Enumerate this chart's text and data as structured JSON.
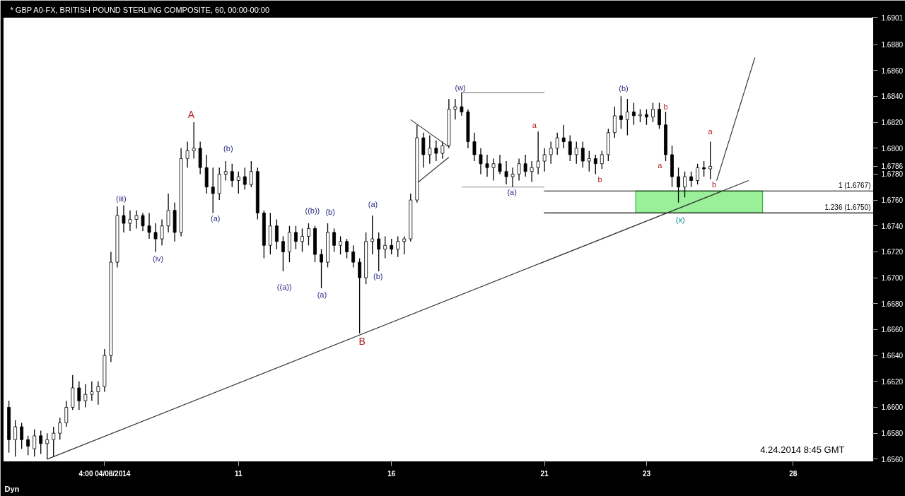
{
  "chart_data": {
    "type": "candlestick",
    "title": "* GBP A0-FX, BRITISH POUND STERLING COMPOSITE, 60, 00:00-00:00",
    "categories": [
      null,
      null,
      null,
      null,
      null,
      null,
      null,
      null,
      null,
      null,
      null,
      null,
      null,
      null,
      null,
      "4:00 04/08/2014",
      null,
      null,
      null,
      null,
      null,
      null,
      null,
      null,
      null,
      null,
      null,
      null,
      null,
      null,
      null,
      null,
      null,
      null,
      null,
      null,
      "11",
      null,
      null,
      null,
      null,
      null,
      null,
      null,
      null,
      null,
      null,
      null,
      null,
      null,
      null,
      null,
      null,
      null,
      null,
      null,
      null,
      null,
      null,
      null,
      "16",
      null,
      null,
      null,
      null,
      null,
      null,
      null,
      null,
      null,
      null,
      null,
      null,
      null,
      null,
      null,
      null,
      null,
      null,
      null,
      null,
      null,
      null,
      null,
      "21",
      null,
      null,
      null,
      null,
      null,
      null,
      null,
      null,
      null,
      null,
      null,
      null,
      null,
      null,
      null,
      "23",
      null,
      null,
      null,
      null,
      null,
      null,
      null,
      null,
      null,
      null,
      null,
      null,
      null,
      null,
      null,
      null,
      null,
      null,
      null,
      null,
      null,
      null,
      "28",
      null,
      null,
      null,
      null,
      null,
      null,
      null,
      null,
      null,
      null,
      null,
      null
    ],
    "ohlc": [
      [
        1.66,
        1.6605,
        1.6565,
        1.6575
      ],
      [
        1.6575,
        1.659,
        1.6562,
        1.6585
      ],
      [
        1.6585,
        1.6588,
        1.6568,
        1.6575
      ],
      [
        1.6575,
        1.6578,
        1.6563,
        1.657
      ],
      [
        1.6568,
        1.6583,
        1.6562,
        1.6578
      ],
      [
        1.6578,
        1.6582,
        1.6564,
        1.6572
      ],
      [
        1.6572,
        1.658,
        1.656,
        1.6575
      ],
      [
        1.6575,
        1.6585,
        1.6562,
        1.658
      ],
      [
        1.658,
        1.6592,
        1.6575,
        1.6588
      ],
      [
        1.6588,
        1.6605,
        1.6585,
        1.66
      ],
      [
        1.66,
        1.6625,
        1.6598,
        1.6615
      ],
      [
        1.6615,
        1.662,
        1.6598,
        1.6605
      ],
      [
        1.6605,
        1.6618,
        1.66,
        1.661
      ],
      [
        1.661,
        1.662,
        1.6605,
        1.6612
      ],
      [
        1.6612,
        1.662,
        1.6602,
        1.6616
      ],
      [
        1.6616,
        1.6645,
        1.6612,
        1.664
      ],
      [
        1.664,
        1.672,
        1.6635,
        1.6712
      ],
      [
        1.6712,
        1.6755,
        1.6708,
        1.6748
      ],
      [
        1.6748,
        1.6756,
        1.6735,
        1.6742
      ],
      [
        1.6742,
        1.6752,
        1.6736,
        1.6745
      ],
      [
        1.6745,
        1.6752,
        1.6738,
        1.6748
      ],
      [
        1.6748,
        1.675,
        1.6736,
        1.674
      ],
      [
        1.674,
        1.675,
        1.673,
        1.6735
      ],
      [
        1.6735,
        1.6742,
        1.672,
        1.673
      ],
      [
        1.673,
        1.6745,
        1.6725,
        1.674
      ],
      [
        1.674,
        1.6765,
        1.6735,
        1.6752
      ],
      [
        1.6752,
        1.6758,
        1.6728,
        1.6735
      ],
      [
        1.6735,
        1.68,
        1.6732,
        1.6792
      ],
      [
        1.6792,
        1.6805,
        1.6785,
        1.6798
      ],
      [
        1.6798,
        1.682,
        1.6792,
        1.68
      ],
      [
        1.68,
        1.6805,
        1.678,
        1.6785
      ],
      [
        1.6785,
        1.6795,
        1.6765,
        1.677
      ],
      [
        1.677,
        1.6785,
        1.675,
        1.6765
      ],
      [
        1.6765,
        1.6785,
        1.676,
        1.678
      ],
      [
        1.678,
        1.679,
        1.6775,
        1.6782
      ],
      [
        1.6782,
        1.6788,
        1.677,
        1.6775
      ],
      [
        1.6775,
        1.6782,
        1.6765,
        1.6778
      ],
      [
        1.6778,
        1.6785,
        1.6768,
        1.6772
      ],
      [
        1.6772,
        1.679,
        1.677,
        1.6782
      ],
      [
        1.6782,
        1.6785,
        1.6745,
        1.675
      ],
      [
        1.675,
        1.6752,
        1.6715,
        1.6725
      ],
      [
        1.6725,
        1.675,
        1.6718,
        1.674
      ],
      [
        1.674,
        1.6745,
        1.6722,
        1.6728
      ],
      [
        1.6728,
        1.6732,
        1.6705,
        1.672
      ],
      [
        1.672,
        1.674,
        1.6712,
        1.6735
      ],
      [
        1.6735,
        1.674,
        1.6722,
        1.6728
      ],
      [
        1.6728,
        1.6738,
        1.672,
        1.6732
      ],
      [
        1.6732,
        1.6742,
        1.6725,
        1.6738
      ],
      [
        1.6738,
        1.674,
        1.6712,
        1.6718
      ],
      [
        1.6718,
        1.6722,
        1.6692,
        1.6712
      ],
      [
        1.6712,
        1.6742,
        1.6708,
        1.6735
      ],
      [
        1.6735,
        1.6738,
        1.672,
        1.6725
      ],
      [
        1.6725,
        1.6732,
        1.6718,
        1.6728
      ],
      [
        1.6728,
        1.673,
        1.6715,
        1.672
      ],
      [
        1.672,
        1.6725,
        1.6708,
        1.6712
      ],
      [
        1.6712,
        1.6715,
        1.6657,
        1.67
      ],
      [
        1.67,
        1.6735,
        1.6695,
        1.6728
      ],
      [
        1.6728,
        1.6748,
        1.6718,
        1.673
      ],
      [
        1.673,
        1.6735,
        1.6705,
        1.6722
      ],
      [
        1.6722,
        1.6732,
        1.6715,
        1.6725
      ],
      [
        1.6725,
        1.673,
        1.6718,
        1.6722
      ],
      [
        1.6722,
        1.6732,
        1.6716,
        1.6728
      ],
      [
        1.6728,
        1.6732,
        1.6718,
        1.673
      ],
      [
        1.673,
        1.6765,
        1.6728,
        1.676
      ],
      [
        1.676,
        1.6818,
        1.6758,
        1.6808
      ],
      [
        1.6808,
        1.6812,
        1.6785,
        1.6795
      ],
      [
        1.6795,
        1.681,
        1.6788,
        1.68
      ],
      [
        1.68,
        1.6806,
        1.679,
        1.6796
      ],
      [
        1.6796,
        1.6805,
        1.6792,
        1.6802
      ],
      [
        1.6802,
        1.6838,
        1.68,
        1.683
      ],
      [
        1.683,
        1.6838,
        1.6822,
        1.6832
      ],
      [
        1.6832,
        1.6843,
        1.6825,
        1.6828
      ],
      [
        1.6828,
        1.683,
        1.68,
        1.6805
      ],
      [
        1.6805,
        1.6812,
        1.679,
        1.6795
      ],
      [
        1.6795,
        1.68,
        1.678,
        1.6788
      ],
      [
        1.6788,
        1.6795,
        1.6778,
        1.6785
      ],
      [
        1.6785,
        1.6792,
        1.6775,
        1.6788
      ],
      [
        1.6788,
        1.6795,
        1.678,
        1.6782
      ],
      [
        1.6782,
        1.679,
        1.6772,
        1.6778
      ],
      [
        1.6778,
        1.6785,
        1.677,
        1.678
      ],
      [
        1.678,
        1.6792,
        1.6775,
        1.6788
      ],
      [
        1.6788,
        1.6795,
        1.6778,
        1.6782
      ],
      [
        1.6782,
        1.679,
        1.6774,
        1.6785
      ],
      [
        1.6785,
        1.6813,
        1.678,
        1.679
      ],
      [
        1.679,
        1.68,
        1.6782,
        1.6795
      ],
      [
        1.6795,
        1.6805,
        1.6788,
        1.68
      ],
      [
        1.68,
        1.6812,
        1.6795,
        1.6808
      ],
      [
        1.6808,
        1.6818,
        1.68,
        1.6805
      ],
      [
        1.6805,
        1.681,
        1.679,
        1.6795
      ],
      [
        1.6795,
        1.6805,
        1.6788,
        1.68
      ],
      [
        1.68,
        1.6805,
        1.6785,
        1.679
      ],
      [
        1.679,
        1.6798,
        1.6782,
        1.6792
      ],
      [
        1.6792,
        1.6795,
        1.678,
        1.6788
      ],
      [
        1.6788,
        1.6798,
        1.6784,
        1.6795
      ],
      [
        1.6795,
        1.6815,
        1.679,
        1.6812
      ],
      [
        1.6812,
        1.6832,
        1.6808,
        1.6825
      ],
      [
        1.6825,
        1.684,
        1.6815,
        1.6822
      ],
      [
        1.6822,
        1.6838,
        1.681,
        1.6828
      ],
      [
        1.6828,
        1.6835,
        1.6818,
        1.6825
      ],
      [
        1.6825,
        1.683,
        1.682,
        1.6826
      ],
      [
        1.6826,
        1.683,
        1.6818,
        1.6824
      ],
      [
        1.6824,
        1.6835,
        1.682,
        1.683
      ],
      [
        1.683,
        1.6835,
        1.6815,
        1.6818
      ],
      [
        1.6818,
        1.6828,
        1.679,
        1.6795
      ],
      [
        1.6795,
        1.6802,
        1.677,
        1.6778
      ],
      [
        1.6778,
        1.6785,
        1.6758,
        1.677
      ],
      [
        1.677,
        1.6782,
        1.6762,
        1.6778
      ],
      [
        1.6778,
        1.6782,
        1.677,
        1.6775
      ],
      [
        1.6775,
        1.6788,
        1.6772,
        1.6785
      ],
      [
        1.6785,
        1.679,
        1.6778,
        1.6784
      ],
      [
        1.6784,
        1.6805,
        1.6776,
        1.6786
      ],
      null,
      null,
      null,
      null,
      null,
      null,
      null,
      null,
      null,
      null,
      null,
      null,
      null,
      null,
      null,
      null,
      null,
      null,
      null,
      null,
      null,
      null,
      null,
      null,
      null
    ],
    "color": "#000000",
    "series": [
      {
        "type": "line",
        "color": "#333333",
        "values": [
          null,
          null,
          null,
          null,
          null,
          null,
          1.656,
          null,
          null,
          null,
          null,
          null,
          null,
          null,
          null,
          null,
          null,
          null,
          null,
          null,
          null,
          null,
          null,
          null,
          null,
          null,
          null,
          null,
          null,
          null,
          null,
          null,
          null,
          null,
          null,
          null,
          null,
          null,
          null,
          null,
          null,
          null,
          null,
          null,
          null,
          null,
          null,
          null,
          null,
          null,
          null,
          null,
          null,
          null,
          null,
          null,
          null,
          null,
          null,
          null,
          null,
          null,
          null,
          null,
          null,
          null,
          null,
          null,
          null,
          null,
          null,
          null,
          null,
          null,
          null,
          null,
          null,
          null,
          null,
          null,
          null,
          null,
          null,
          null,
          null,
          null,
          null,
          null,
          null,
          null,
          null,
          null,
          null,
          null,
          null,
          null,
          null,
          null,
          null,
          null,
          null,
          null,
          null,
          null,
          null,
          null,
          null,
          null,
          null,
          null,
          null,
          null,
          null,
          null,
          null,
          null,
          1.6775,
          null,
          null,
          null,
          null,
          null,
          null,
          null,
          null,
          null,
          null,
          null,
          null,
          null,
          null,
          null,
          null,
          null,
          null,
          null
        ]
      },
      {
        "type": "line",
        "color": "#333333",
        "values": [
          null,
          null,
          null,
          null,
          null,
          null,
          null,
          null,
          null,
          null,
          null,
          null,
          null,
          null,
          null,
          null,
          null,
          null,
          null,
          null,
          null,
          null,
          null,
          null,
          null,
          null,
          null,
          null,
          null,
          null,
          null,
          null,
          null,
          null,
          null,
          null,
          null,
          null,
          null,
          null,
          null,
          null,
          null,
          null,
          null,
          null,
          null,
          null,
          null,
          null,
          null,
          null,
          null,
          null,
          null,
          null,
          null,
          null,
          null,
          null,
          null,
          null,
          null,
          null,
          null,
          null,
          null,
          null,
          null,
          null,
          null,
          null,
          null,
          null,
          null,
          null,
          null,
          null,
          null,
          null,
          null,
          null,
          null,
          null,
          null,
          null,
          null,
          null,
          null,
          null,
          null,
          null,
          null,
          null,
          null,
          null,
          null,
          null,
          null,
          null,
          null,
          null,
          null,
          null,
          null,
          null,
          null,
          null,
          null,
          null,
          null,
          1.6775,
          null,
          null,
          null,
          null,
          null,
          1.687,
          null,
          null,
          null,
          null,
          null,
          null,
          null,
          null,
          null,
          null,
          null,
          null,
          null,
          null,
          null,
          null,
          null,
          null
        ]
      },
      {
        "type": "line",
        "color": "#333333",
        "values": [
          null,
          null,
          null,
          null,
          null,
          null,
          null,
          null,
          null,
          null,
          null,
          null,
          null,
          null,
          null,
          null,
          null,
          null,
          null,
          null,
          null,
          null,
          null,
          null,
          null,
          null,
          null,
          null,
          null,
          null,
          null,
          null,
          null,
          null,
          null,
          null,
          null,
          null,
          null,
          null,
          null,
          null,
          null,
          null,
          null,
          null,
          null,
          null,
          null,
          null,
          null,
          null,
          null,
          null,
          null,
          null,
          null,
          null,
          null,
          null,
          null,
          null,
          null,
          1.6822,
          null,
          null,
          null,
          null,
          null,
          1.6801,
          null,
          null,
          null,
          null,
          null,
          null,
          null,
          null,
          null,
          null,
          null,
          null,
          null,
          null,
          null,
          null,
          null,
          null,
          null,
          null,
          null,
          null,
          null,
          null,
          null,
          null,
          null,
          null,
          null,
          null,
          null,
          null,
          null,
          null,
          null,
          null,
          null,
          null,
          null,
          null,
          null,
          null,
          null,
          null,
          null,
          null,
          null,
          null,
          null,
          null,
          null,
          null,
          null,
          null,
          null,
          null,
          null,
          null,
          null,
          null,
          null,
          null,
          null,
          null,
          null,
          null
        ]
      },
      {
        "type": "line",
        "color": "#333333",
        "values": [
          null,
          null,
          null,
          null,
          null,
          null,
          null,
          null,
          null,
          null,
          null,
          null,
          null,
          null,
          null,
          null,
          null,
          null,
          null,
          null,
          null,
          null,
          null,
          null,
          null,
          null,
          null,
          null,
          null,
          null,
          null,
          null,
          null,
          null,
          null,
          null,
          null,
          null,
          null,
          null,
          null,
          null,
          null,
          null,
          null,
          null,
          null,
          null,
          null,
          null,
          null,
          null,
          null,
          null,
          null,
          null,
          null,
          null,
          null,
          null,
          null,
          null,
          null,
          null,
          1.6773,
          null,
          null,
          null,
          null,
          1.6793,
          null,
          null,
          null,
          null,
          null,
          null,
          null,
          null,
          null,
          null,
          null,
          null,
          null,
          null,
          null,
          null,
          null,
          null,
          null,
          null,
          null,
          null,
          null,
          null,
          null,
          null,
          null,
          null,
          null,
          null,
          null,
          null,
          null,
          null,
          null,
          null,
          null,
          null,
          null,
          null,
          null,
          null,
          null,
          null,
          null,
          null,
          null,
          null,
          null,
          null,
          null,
          null,
          null,
          null,
          null,
          null,
          null,
          null,
          null,
          null,
          null,
          null,
          null,
          null,
          null,
          null
        ]
      },
      {
        "type": "line",
        "color": "#888888",
        "values": [
          null,
          null,
          null,
          null,
          null,
          null,
          null,
          null,
          null,
          null,
          null,
          null,
          null,
          null,
          null,
          null,
          null,
          null,
          null,
          null,
          null,
          null,
          null,
          null,
          null,
          null,
          null,
          null,
          null,
          null,
          null,
          null,
          null,
          null,
          null,
          null,
          null,
          null,
          null,
          null,
          null,
          null,
          null,
          null,
          null,
          null,
          null,
          null,
          null,
          null,
          null,
          null,
          null,
          null,
          null,
          null,
          null,
          null,
          null,
          null,
          null,
          null,
          null,
          null,
          null,
          null,
          null,
          null,
          null,
          null,
          null,
          1.6843,
          null,
          null,
          null,
          null,
          null,
          null,
          null,
          null,
          null,
          null,
          null,
          null,
          1.6843,
          null,
          null,
          null,
          null,
          null,
          null,
          null,
          null,
          null,
          null,
          null,
          null,
          null,
          null,
          null,
          null,
          null,
          null,
          null,
          null,
          null,
          null,
          null,
          null,
          null,
          null,
          null,
          null,
          null,
          null,
          null,
          null,
          null,
          null,
          null,
          null,
          null,
          null,
          null,
          null,
          null,
          null,
          null,
          null,
          null,
          null,
          null,
          null,
          null,
          null,
          null
        ]
      },
      {
        "type": "line",
        "color": "#888888",
        "values": [
          null,
          null,
          null,
          null,
          null,
          null,
          null,
          null,
          null,
          null,
          null,
          null,
          null,
          null,
          null,
          null,
          null,
          null,
          null,
          null,
          null,
          null,
          null,
          null,
          null,
          null,
          null,
          null,
          null,
          null,
          null,
          null,
          null,
          null,
          null,
          null,
          null,
          null,
          null,
          null,
          null,
          null,
          null,
          null,
          null,
          null,
          null,
          null,
          null,
          null,
          null,
          null,
          null,
          null,
          null,
          null,
          null,
          null,
          null,
          null,
          null,
          null,
          null,
          null,
          null,
          null,
          null,
          null,
          null,
          null,
          null,
          1.677,
          null,
          null,
          null,
          null,
          null,
          null,
          null,
          null,
          null,
          null,
          null,
          null,
          1.677,
          null,
          null,
          null,
          null,
          null,
          null,
          null,
          null,
          null,
          null,
          null,
          null,
          null,
          null,
          null,
          null,
          null,
          null,
          null,
          null,
          null,
          null,
          null,
          null,
          null,
          null,
          null,
          null,
          null,
          null,
          null,
          null,
          null,
          null,
          null,
          null,
          null,
          null,
          null,
          null,
          null,
          null,
          null,
          null,
          null,
          null,
          null,
          null,
          null,
          null,
          null
        ]
      }
    ],
    "ref_lines": [
      {
        "axis": "y",
        "value": 1.6767,
        "label": "1 (1.6767)",
        "color": "#000000"
      },
      {
        "axis": "y",
        "value": 1.675,
        "label": "1.236 (1.6750)",
        "color": "#000000"
      }
    ],
    "bands": [
      {
        "axis": "y",
        "from": 1.675,
        "to": 1.6767,
        "color": "#99f099"
      }
    ],
    "ylim": [
      1.6558,
      1.6901
    ],
    "yticks": [
      {
        "value": 1.656,
        "label": "1.6560"
      },
      {
        "value": 1.658,
        "label": "1.6580"
      },
      {
        "value": 1.66,
        "label": "1.6600"
      },
      {
        "value": 1.662,
        "label": "1.6620"
      },
      {
        "value": 1.664,
        "label": "1.6640"
      },
      {
        "value": 1.666,
        "label": "1.6660"
      },
      {
        "value": 1.668,
        "label": "1.6680"
      },
      {
        "value": 1.67,
        "label": "1.6700"
      },
      {
        "value": 1.672,
        "label": "1.6720"
      },
      {
        "value": 1.674,
        "label": "1.6740"
      },
      {
        "value": 1.676,
        "label": "1.6760"
      },
      {
        "value": 1.678,
        "label": "1.6780"
      },
      {
        "value": 1.6786,
        "label": "1.6786"
      },
      {
        "value": 1.68,
        "label": "1.6800"
      },
      {
        "value": 1.682,
        "label": "1.6820"
      },
      {
        "value": 1.684,
        "label": "1.6840"
      },
      {
        "value": 1.686,
        "label": "1.6860"
      },
      {
        "value": 1.688,
        "label": "1.6880"
      },
      {
        "value": 1.6901,
        "label": "1.6901"
      }
    ],
    "grid": false,
    "annotations": [
      "(iii)",
      "(iv)",
      "A",
      "(a)",
      "(b)",
      "((a))",
      "((b))",
      "(a)",
      "(b)",
      "B",
      "(a)",
      "(b)",
      "(w)",
      "(a)",
      "a",
      "b",
      "(b)",
      "a",
      "b",
      "(x)",
      "a",
      "b",
      "4.24.2014 8:45 GMT",
      "Dyn"
    ]
  }
}
